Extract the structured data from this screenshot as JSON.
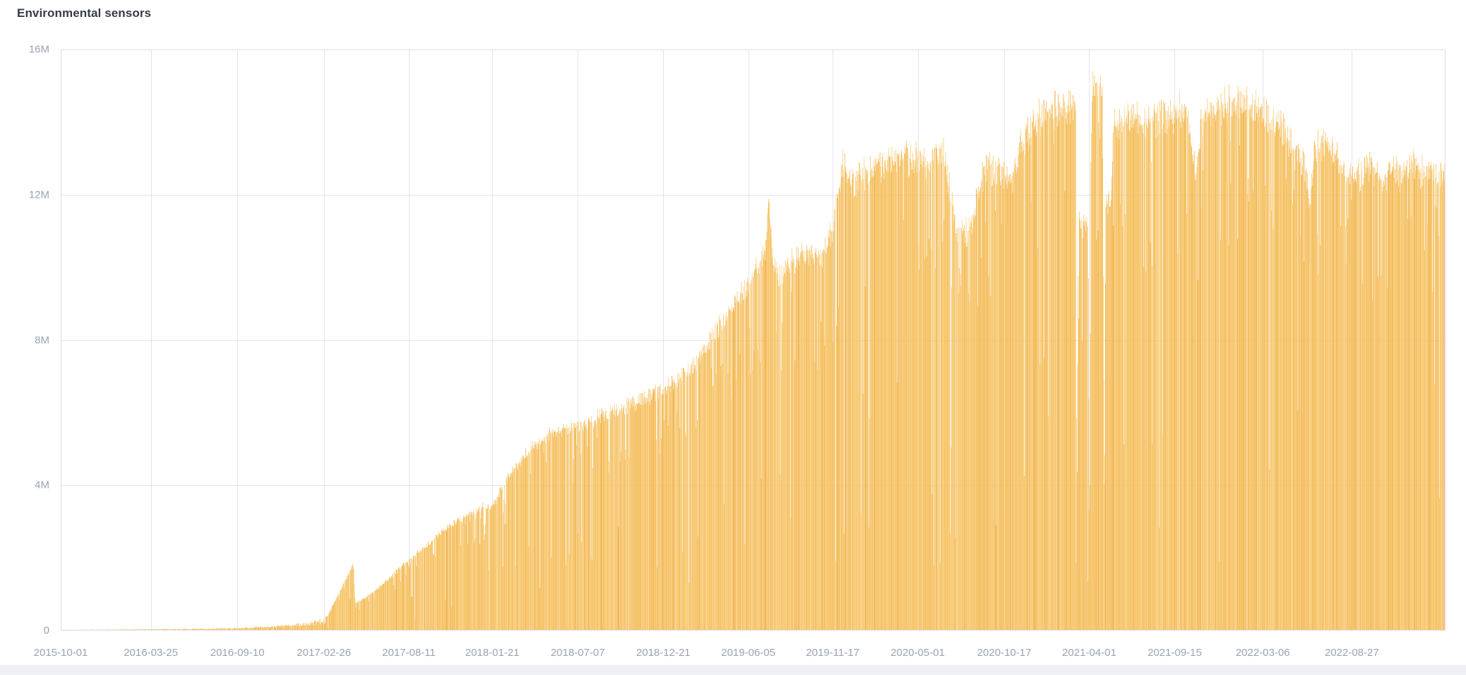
{
  "panel": {
    "title": "Environmental sensors"
  },
  "colors": {
    "background": "#ffffff",
    "title": "#363b45",
    "axis_label": "#9aa3b2",
    "gridline": "#e4e3ef",
    "plot_border": "#dfdeea",
    "baseline": "#d9d9e3",
    "footer_strip": "#eff0f4",
    "bar_palette": [
      "#f9d189",
      "#f7c66c",
      "#f5bd55",
      "#f0ad3f"
    ],
    "bar_palette_weights": [
      0.12,
      0.3,
      0.38,
      0.2
    ]
  },
  "chart_data": {
    "type": "bar",
    "title": "Environmental sensors",
    "series_name": "Environmental sensors",
    "legend": "none",
    "grid": true,
    "bar_interval": "day",
    "x_axis": {
      "type": "time",
      "start": "2015-10-01",
      "end": "2023-02-26",
      "tick_labels": [
        "2015-10-01",
        "2016-03-25",
        "2016-09-10",
        "2017-02-26",
        "2017-08-11",
        "2018-01-21",
        "2018-07-07",
        "2018-12-21",
        "2019-06-05",
        "2019-11-17",
        "2020-05-01",
        "2020-10-17",
        "2021-04-01",
        "2021-09-15",
        "2022-03-06",
        "2022-08-27"
      ]
    },
    "y_axis": {
      "max_millions": 16,
      "ticks": [
        {
          "value_millions": 0,
          "label": "0"
        },
        {
          "value_millions": 4,
          "label": "4M"
        },
        {
          "value_millions": 8,
          "label": "8M"
        },
        {
          "value_millions": 12,
          "label": "12M"
        },
        {
          "value_millions": 16,
          "label": "16M"
        }
      ]
    },
    "envelope_millions": [
      [
        "2015-10-01",
        0.02
      ],
      [
        "2015-12-15",
        0.03
      ],
      [
        "2016-03-25",
        0.045
      ],
      [
        "2016-06-15",
        0.055
      ],
      [
        "2016-09-10",
        0.08
      ],
      [
        "2016-10-20",
        0.12
      ],
      [
        "2016-12-05",
        0.16
      ],
      [
        "2017-01-20",
        0.22
      ],
      [
        "2017-02-25",
        0.33
      ],
      [
        "2017-03-06",
        0.42
      ],
      [
        "2017-04-25",
        1.85
      ],
      [
        "2017-04-28",
        0.75
      ],
      [
        "2017-05-20",
        0.92
      ],
      [
        "2017-06-15",
        1.2
      ],
      [
        "2017-07-15",
        1.6
      ],
      [
        "2017-08-11",
        1.95
      ],
      [
        "2017-09-10",
        2.3
      ],
      [
        "2017-10-25",
        2.85
      ],
      [
        "2017-12-20",
        3.35
      ],
      [
        "2018-01-21",
        3.45
      ],
      [
        "2018-02-15",
        4.1
      ],
      [
        "2018-03-15",
        4.65
      ],
      [
        "2018-04-15",
        5.15
      ],
      [
        "2018-05-10",
        5.45
      ],
      [
        "2018-06-10",
        5.58
      ],
      [
        "2018-07-07",
        5.68
      ],
      [
        "2018-08-10",
        5.85
      ],
      [
        "2018-09-10",
        6.02
      ],
      [
        "2018-10-10",
        6.22
      ],
      [
        "2018-11-10",
        6.42
      ],
      [
        "2018-12-21",
        6.65
      ],
      [
        "2019-01-10",
        6.85
      ],
      [
        "2019-01-25",
        7.1
      ],
      [
        "2019-02-20",
        7.3
      ],
      [
        "2019-03-20",
        8.0
      ],
      [
        "2019-04-15",
        8.6
      ],
      [
        "2019-05-10",
        9.0
      ],
      [
        "2019-06-05",
        9.6
      ],
      [
        "2019-06-25",
        10.1
      ],
      [
        "2019-07-08",
        10.6
      ],
      [
        "2019-07-15",
        12.0
      ],
      [
        "2019-07-22",
        10.2
      ],
      [
        "2019-08-05",
        9.8
      ],
      [
        "2019-09-01",
        10.3
      ],
      [
        "2019-10-01",
        10.45
      ],
      [
        "2019-10-20",
        10.2
      ],
      [
        "2019-11-17",
        11.1
      ],
      [
        "2019-12-07",
        12.9
      ],
      [
        "2019-12-29",
        12.4
      ],
      [
        "2020-01-12",
        12.7
      ],
      [
        "2020-02-08",
        12.8
      ],
      [
        "2020-03-10",
        13.0
      ],
      [
        "2020-04-10",
        13.1
      ],
      [
        "2020-05-10",
        13.0
      ],
      [
        "2020-06-18",
        13.3
      ],
      [
        "2020-07-02",
        12.2
      ],
      [
        "2020-07-18",
        10.9
      ],
      [
        "2020-08-12",
        11.1
      ],
      [
        "2020-08-25",
        12.0
      ],
      [
        "2020-09-10",
        12.85
      ],
      [
        "2020-10-17",
        12.7
      ],
      [
        "2020-10-28",
        12.3
      ],
      [
        "2020-11-20",
        13.5
      ],
      [
        "2020-12-15",
        14.0
      ],
      [
        "2021-01-10",
        14.35
      ],
      [
        "2021-02-10",
        14.5
      ],
      [
        "2021-03-06",
        14.55
      ],
      [
        "2021-03-08",
        3.0
      ],
      [
        "2021-03-11",
        11.2
      ],
      [
        "2021-03-30",
        11.1
      ],
      [
        "2021-04-02",
        1.8
      ],
      [
        "2021-04-05",
        14.9
      ],
      [
        "2021-04-16",
        15.25
      ],
      [
        "2021-04-27",
        14.9
      ],
      [
        "2021-05-01",
        2.5
      ],
      [
        "2021-05-03",
        11.8
      ],
      [
        "2021-05-14",
        11.7
      ],
      [
        "2021-05-19",
        14.05
      ],
      [
        "2021-06-15",
        14.2
      ],
      [
        "2021-07-15",
        14.0
      ],
      [
        "2021-08-15",
        14.25
      ],
      [
        "2021-09-15",
        14.3
      ],
      [
        "2021-10-12",
        14.4
      ],
      [
        "2021-10-26",
        12.55
      ],
      [
        "2021-11-06",
        14.1
      ],
      [
        "2021-12-12",
        14.5
      ],
      [
        "2022-01-12",
        14.6
      ],
      [
        "2022-02-12",
        14.45
      ],
      [
        "2022-03-06",
        14.3
      ],
      [
        "2022-04-12",
        13.9
      ],
      [
        "2022-05-03",
        13.35
      ],
      [
        "2022-05-28",
        12.9
      ],
      [
        "2022-06-06",
        11.7
      ],
      [
        "2022-06-16",
        13.4
      ],
      [
        "2022-07-12",
        13.6
      ],
      [
        "2022-08-02",
        13.1
      ],
      [
        "2022-08-27",
        12.45
      ],
      [
        "2022-09-15",
        12.65
      ],
      [
        "2022-10-02",
        12.95
      ],
      [
        "2022-10-21",
        12.5
      ],
      [
        "2022-11-12",
        12.85
      ],
      [
        "2022-12-02",
        12.6
      ],
      [
        "2022-12-22",
        12.9
      ],
      [
        "2023-01-12",
        12.6
      ],
      [
        "2023-01-26",
        12.85
      ],
      [
        "2023-02-26",
        12.4
      ]
    ],
    "texture": {
      "seed": 7,
      "smooth_until": "2017-03-01",
      "early_min_factor": 0.5,
      "jitter_down": 0.05,
      "jitter_up": 0.04,
      "moderate_dip": {
        "probability": 0.085,
        "min_factor": 0.7,
        "max_factor": 0.93
      },
      "deep_dip": {
        "probability": 0.024,
        "min_factor": 0.12,
        "max_factor": 0.55
      },
      "cap_millions": 15.4
    }
  }
}
